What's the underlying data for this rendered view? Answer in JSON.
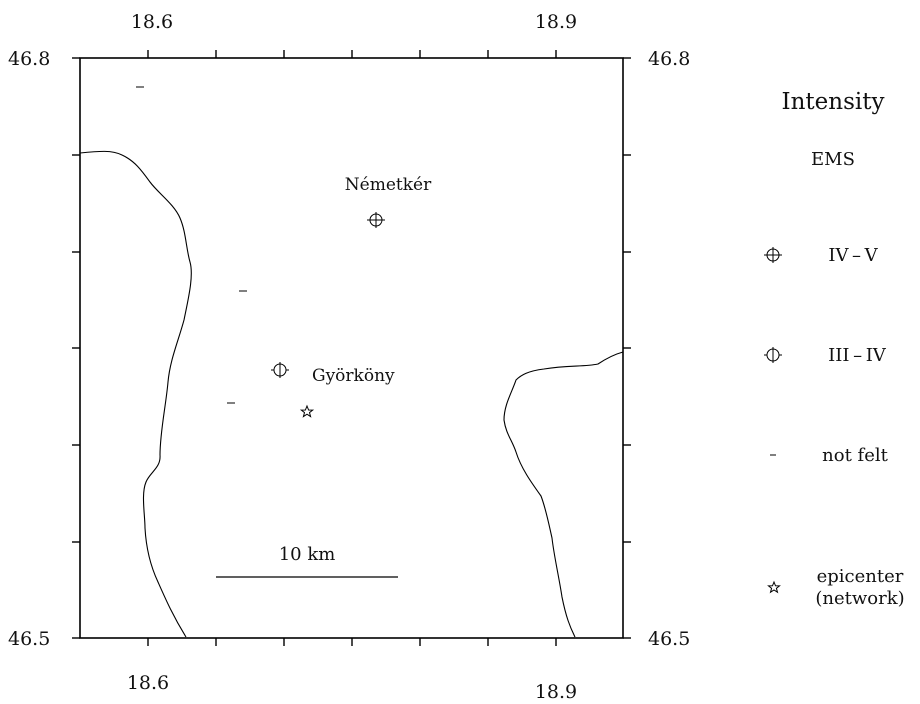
{
  "map": {
    "top_lon_labels": [
      "18.6",
      "18.9"
    ],
    "bottom_lon_labels": [
      "18.6",
      "18.9"
    ],
    "left_lat_labels": [
      "46.8",
      "46.5"
    ],
    "right_lat_labels": [
      "46.8",
      "46.5"
    ],
    "places": [
      {
        "name": "Németkér",
        "intensity": "IV-V"
      },
      {
        "name": "Györköny",
        "intensity": "III-IV"
      }
    ],
    "scale_bar": {
      "label": "10  km"
    }
  },
  "legend": {
    "title": "Intensity",
    "subtitle": "EMS",
    "items": [
      {
        "symbol": "circle-cross",
        "label": "IV – V"
      },
      {
        "symbol": "circle-bar",
        "label": "III – IV"
      },
      {
        "symbol": "dash",
        "label": "not felt"
      },
      {
        "symbol": "star",
        "label": "epicenter",
        "label2": "(network)"
      }
    ]
  }
}
